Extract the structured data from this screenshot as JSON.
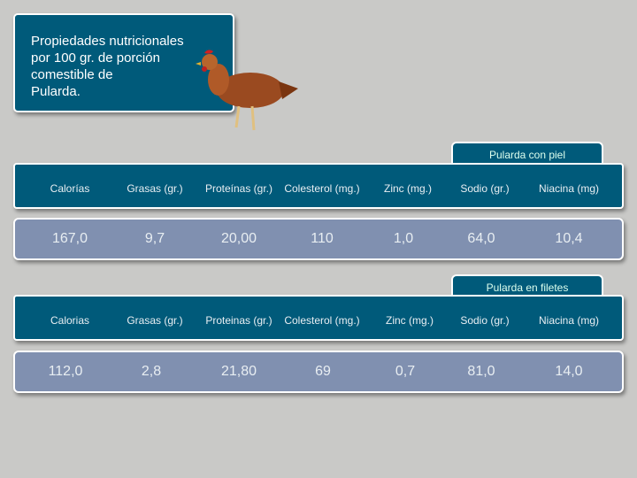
{
  "title": "Propiedades nutricionales\npor 100 gr. de porción\ncomestible de\nPularda.",
  "colors": {
    "panel": "#005a7a",
    "values": "#8090b0",
    "background": "#c9c9c7"
  },
  "tables": [
    {
      "tab": "Pularda con piel",
      "headers": [
        "Calorías",
        "Grasas (gr.)",
        "Proteínas (gr.)",
        "Colesterol (mg.)",
        "Zinc (mg.)",
        "Sodio (gr.)",
        "Niacina (mg)"
      ],
      "values": [
        "167,0",
        "9,7",
        "20,00",
        "110",
        "1,0",
        "64,0",
        "10,4"
      ]
    },
    {
      "tab": "Pularda en filetes",
      "headers": [
        "Calorias",
        "Grasas (gr.)",
        "Proteinas (gr.)",
        "Colesterol (mg.)",
        "Zinc (mg.)",
        "Sodio (gr.)",
        "Niacina (mg)"
      ],
      "values": [
        "112,0",
        "2,8",
        "21,80",
        "69",
        "0,7",
        "81,0",
        "14,0"
      ]
    }
  ]
}
